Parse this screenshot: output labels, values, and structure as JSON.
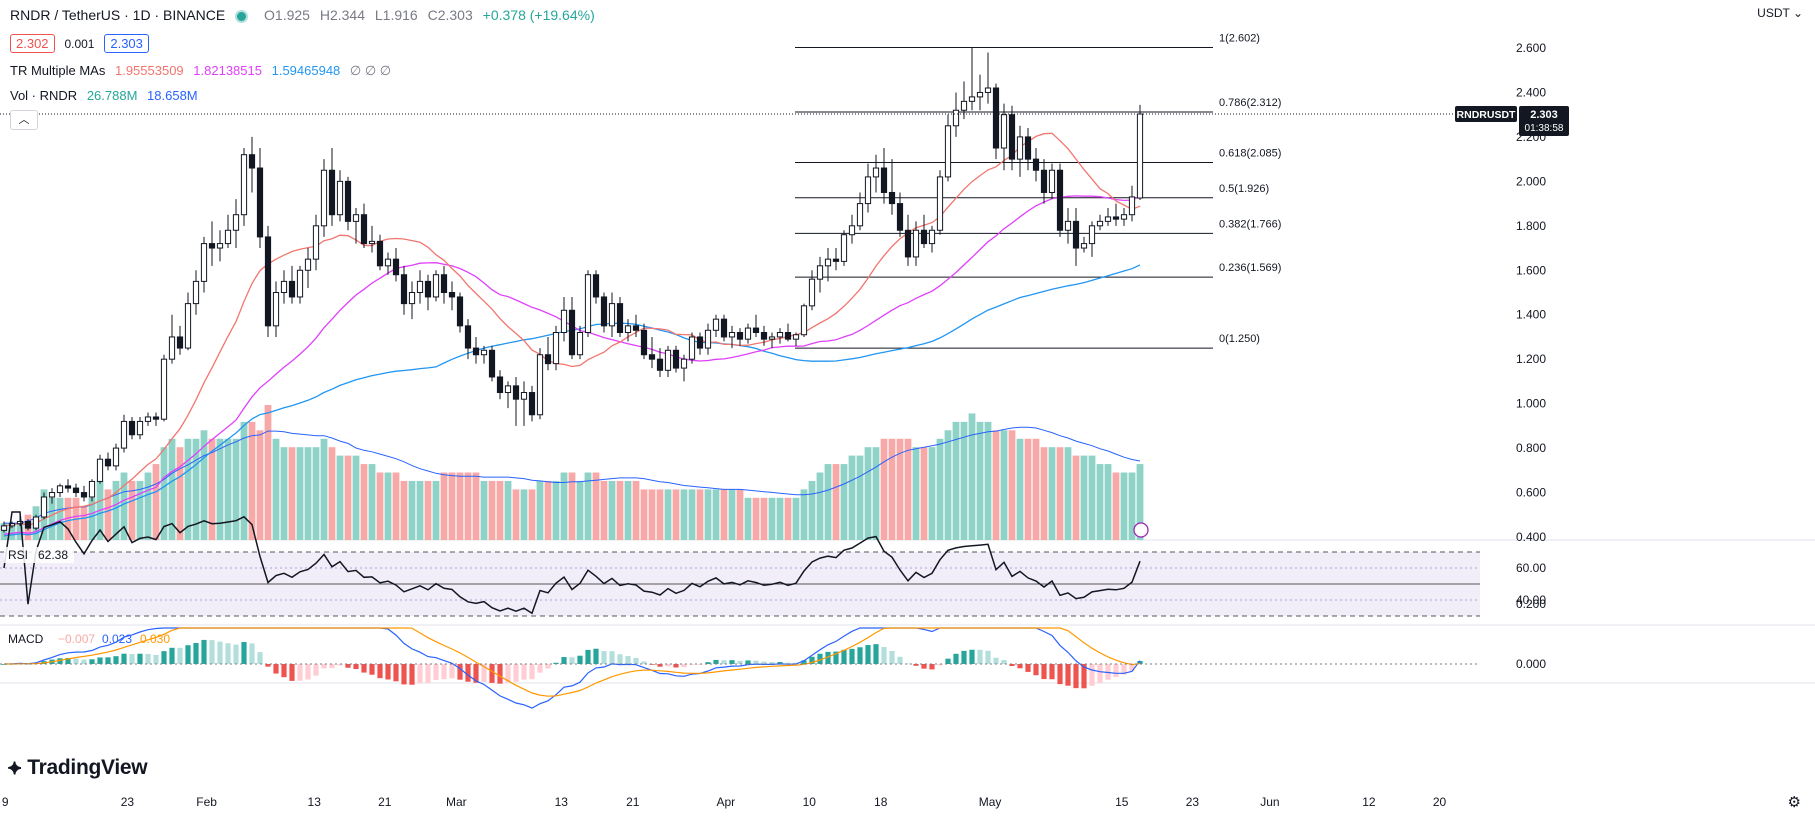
{
  "header": {
    "symbol": "RNDR / TetherUS · 1D · BINANCE",
    "ohlc": {
      "o": "O1.925",
      "h": "H2.344",
      "l": "L1.916",
      "c": "C2.303",
      "change": "+0.378 (+19.64%)"
    },
    "bid": "2.302",
    "spread": "0.001",
    "ask": "2.303",
    "mas": {
      "label": "TR Multiple MAs",
      "v1": "1.95553509",
      "v2": "1.82138515",
      "v3": "1.59465948",
      "rest": "∅  ∅  ∅"
    },
    "vol": {
      "label": "Vol · RNDR",
      "v1": "26.788M",
      "v2": "18.658M"
    },
    "currency": "USDT ⌄"
  },
  "price_tag": {
    "symbol": "RNDRUSDT",
    "price": "2.303",
    "countdown": "01:38:58"
  },
  "logo": "TradingView",
  "colors": {
    "up": "#26a69a",
    "down": "#ef5350",
    "ma20": "#f2766f",
    "ma50": "#e040fb",
    "ma100": "#2196f3",
    "volma": "#2962ff",
    "vol_up": "#8fd2c7",
    "vol_down": "#f7a9a7",
    "rsi": "#131722",
    "macd": "#2962ff",
    "signal": "#ff9800",
    "fib": "#131722"
  },
  "chart_data": [
    {
      "type": "candlestick",
      "title": "",
      "y_axis": {
        "min": 0.4,
        "max": 2.6,
        "ticks": [
          "2.600",
          "2.400",
          "2.200",
          "2.000",
          "1.800",
          "1.600",
          "1.400",
          "1.200",
          "1.000",
          "0.800",
          "0.600",
          "0.400"
        ]
      },
      "x_axis": {
        "ticks": [
          "9",
          "23",
          "Feb",
          "13",
          "21",
          "Mar",
          "13",
          "21",
          "Apr",
          "10",
          "18",
          "May",
          "15",
          "23",
          "Jun",
          "12",
          "20"
        ]
      },
      "fib": [
        {
          "level": "1(2.602)",
          "value": 2.602
        },
        {
          "level": "0.786(2.312)",
          "value": 2.312
        },
        {
          "level": "0.618(2.085)",
          "value": 2.085
        },
        {
          "level": "0.5(1.926)",
          "value": 1.926
        },
        {
          "level": "0.382(1.766)",
          "value": 1.766
        },
        {
          "level": "0.236(1.569)",
          "value": 1.569
        },
        {
          "level": "0(1.250)",
          "value": 1.25
        }
      ],
      "candles": [
        [
          0.43,
          0.47,
          0.42,
          0.45
        ],
        [
          0.45,
          0.47,
          0.44,
          0.46
        ],
        [
          0.46,
          0.5,
          0.45,
          0.47
        ],
        [
          0.47,
          0.48,
          0.43,
          0.44
        ],
        [
          0.44,
          0.5,
          0.43,
          0.49
        ],
        [
          0.49,
          0.6,
          0.48,
          0.58
        ],
        [
          0.58,
          0.62,
          0.55,
          0.6
        ],
        [
          0.6,
          0.64,
          0.58,
          0.63
        ],
        [
          0.63,
          0.66,
          0.6,
          0.62
        ],
        [
          0.62,
          0.64,
          0.58,
          0.6
        ],
        [
          0.6,
          0.63,
          0.56,
          0.58
        ],
        [
          0.58,
          0.66,
          0.56,
          0.65
        ],
        [
          0.65,
          0.77,
          0.64,
          0.75
        ],
        [
          0.75,
          0.78,
          0.7,
          0.72
        ],
        [
          0.72,
          0.82,
          0.7,
          0.8
        ],
        [
          0.8,
          0.95,
          0.78,
          0.92
        ],
        [
          0.92,
          0.94,
          0.84,
          0.86
        ],
        [
          0.86,
          0.94,
          0.84,
          0.92
        ],
        [
          0.92,
          0.96,
          0.9,
          0.94
        ],
        [
          0.94,
          0.96,
          0.9,
          0.93
        ],
        [
          0.93,
          1.22,
          0.92,
          1.2
        ],
        [
          1.2,
          1.4,
          1.18,
          1.3
        ],
        [
          1.3,
          1.35,
          1.22,
          1.25
        ],
        [
          1.25,
          1.5,
          1.24,
          1.45
        ],
        [
          1.45,
          1.6,
          1.4,
          1.55
        ],
        [
          1.55,
          1.75,
          1.5,
          1.72
        ],
        [
          1.72,
          1.82,
          1.62,
          1.7
        ],
        [
          1.7,
          1.78,
          1.64,
          1.72
        ],
        [
          1.72,
          1.85,
          1.7,
          1.78
        ],
        [
          1.78,
          1.92,
          1.7,
          1.85
        ],
        [
          1.85,
          2.15,
          1.8,
          2.12
        ],
        [
          2.12,
          2.2,
          1.95,
          2.06
        ],
        [
          2.06,
          2.15,
          1.7,
          1.75
        ],
        [
          1.75,
          1.8,
          1.3,
          1.35
        ],
        [
          1.35,
          1.55,
          1.3,
          1.5
        ],
        [
          1.5,
          1.6,
          1.45,
          1.55
        ],
        [
          1.55,
          1.62,
          1.45,
          1.48
        ],
        [
          1.48,
          1.62,
          1.45,
          1.6
        ],
        [
          1.6,
          1.7,
          1.52,
          1.65
        ],
        [
          1.65,
          1.85,
          1.6,
          1.8
        ],
        [
          1.8,
          2.1,
          1.75,
          2.05
        ],
        [
          2.05,
          2.15,
          1.8,
          1.85
        ],
        [
          1.85,
          2.05,
          1.82,
          2
        ],
        [
          2,
          2.02,
          1.78,
          1.82
        ],
        [
          1.82,
          1.88,
          1.72,
          1.85
        ],
        [
          1.85,
          1.9,
          1.7,
          1.72
        ],
        [
          1.72,
          1.8,
          1.68,
          1.73
        ],
        [
          1.73,
          1.76,
          1.6,
          1.62
        ],
        [
          1.62,
          1.68,
          1.58,
          1.65
        ],
        [
          1.65,
          1.7,
          1.55,
          1.58
        ],
        [
          1.58,
          1.62,
          1.4,
          1.45
        ],
        [
          1.45,
          1.55,
          1.38,
          1.5
        ],
        [
          1.5,
          1.6,
          1.45,
          1.55
        ],
        [
          1.55,
          1.58,
          1.42,
          1.48
        ],
        [
          1.48,
          1.6,
          1.46,
          1.58
        ],
        [
          1.58,
          1.62,
          1.45,
          1.5
        ],
        [
          1.5,
          1.55,
          1.42,
          1.48
        ],
        [
          1.48,
          1.5,
          1.32,
          1.35
        ],
        [
          1.35,
          1.38,
          1.2,
          1.25
        ],
        [
          1.25,
          1.3,
          1.18,
          1.22
        ],
        [
          1.22,
          1.26,
          1.18,
          1.24
        ],
        [
          1.24,
          1.26,
          1.1,
          1.12
        ],
        [
          1.12,
          1.15,
          1.02,
          1.05
        ],
        [
          1.05,
          1.1,
          0.98,
          1.08
        ],
        [
          1.08,
          1.12,
          0.9,
          1.02
        ],
        [
          1.02,
          1.1,
          0.9,
          1.05
        ],
        [
          1.05,
          1.08,
          0.92,
          0.95
        ],
        [
          0.95,
          1.25,
          0.93,
          1.22
        ],
        [
          1.22,
          1.3,
          1.15,
          1.18
        ],
        [
          1.18,
          1.35,
          1.15,
          1.32
        ],
        [
          1.32,
          1.48,
          1.28,
          1.42
        ],
        [
          1.42,
          1.48,
          1.2,
          1.22
        ],
        [
          1.22,
          1.35,
          1.2,
          1.32
        ],
        [
          1.32,
          1.6,
          1.3,
          1.58
        ],
        [
          1.58,
          1.6,
          1.45,
          1.48
        ],
        [
          1.48,
          1.5,
          1.32,
          1.35
        ],
        [
          1.35,
          1.5,
          1.3,
          1.45
        ],
        [
          1.45,
          1.48,
          1.3,
          1.32
        ],
        [
          1.32,
          1.38,
          1.28,
          1.35
        ],
        [
          1.35,
          1.4,
          1.3,
          1.33
        ],
        [
          1.33,
          1.36,
          1.2,
          1.22
        ],
        [
          1.22,
          1.3,
          1.16,
          1.2
        ],
        [
          1.2,
          1.25,
          1.12,
          1.15
        ],
        [
          1.15,
          1.26,
          1.12,
          1.24
        ],
        [
          1.24,
          1.26,
          1.14,
          1.16
        ],
        [
          1.16,
          1.22,
          1.1,
          1.2
        ],
        [
          1.2,
          1.32,
          1.18,
          1.3
        ],
        [
          1.3,
          1.32,
          1.22,
          1.25
        ],
        [
          1.25,
          1.36,
          1.22,
          1.33
        ],
        [
          1.33,
          1.4,
          1.3,
          1.38
        ],
        [
          1.38,
          1.4,
          1.28,
          1.3
        ],
        [
          1.3,
          1.35,
          1.25,
          1.32
        ],
        [
          1.32,
          1.34,
          1.26,
          1.29
        ],
        [
          1.29,
          1.36,
          1.27,
          1.34
        ],
        [
          1.34,
          1.4,
          1.3,
          1.32
        ],
        [
          1.32,
          1.35,
          1.26,
          1.29
        ],
        [
          1.29,
          1.32,
          1.25,
          1.3
        ],
        [
          1.3,
          1.34,
          1.27,
          1.32
        ],
        [
          1.32,
          1.36,
          1.28,
          1.29
        ],
        [
          1.29,
          1.32,
          1.26,
          1.31
        ],
        [
          1.31,
          1.45,
          1.3,
          1.44
        ],
        [
          1.44,
          1.6,
          1.42,
          1.56
        ],
        [
          1.56,
          1.66,
          1.5,
          1.62
        ],
        [
          1.62,
          1.7,
          1.55,
          1.65
        ],
        [
          1.65,
          1.7,
          1.6,
          1.64
        ],
        [
          1.64,
          1.78,
          1.62,
          1.76
        ],
        [
          1.76,
          1.85,
          1.72,
          1.8
        ],
        [
          1.8,
          1.95,
          1.78,
          1.9
        ],
        [
          1.9,
          2.08,
          1.86,
          2.02
        ],
        [
          2.02,
          2.12,
          1.95,
          2.06
        ],
        [
          2.06,
          2.15,
          1.9,
          1.95
        ],
        [
          1.95,
          2.1,
          1.85,
          1.9
        ],
        [
          1.9,
          1.95,
          1.75,
          1.78
        ],
        [
          1.78,
          1.85,
          1.62,
          1.66
        ],
        [
          1.66,
          1.82,
          1.62,
          1.78
        ],
        [
          1.78,
          1.85,
          1.7,
          1.72
        ],
        [
          1.72,
          1.8,
          1.68,
          1.78
        ],
        [
          1.78,
          2.05,
          1.76,
          2.02
        ],
        [
          2.02,
          2.3,
          2,
          2.25
        ],
        [
          2.25,
          2.4,
          2.2,
          2.32
        ],
        [
          2.32,
          2.45,
          2.28,
          2.36
        ],
        [
          2.36,
          2.6,
          2.32,
          2.38
        ],
        [
          2.38,
          2.48,
          2.32,
          2.4
        ],
        [
          2.4,
          2.58,
          2.35,
          2.42
        ],
        [
          2.42,
          2.44,
          2.1,
          2.15
        ],
        [
          2.15,
          2.35,
          2.05,
          2.3
        ],
        [
          2.3,
          2.34,
          2.05,
          2.1
        ],
        [
          2.1,
          2.25,
          2.02,
          2.2
        ],
        [
          2.2,
          2.24,
          2.05,
          2.1
        ],
        [
          2.1,
          2.15,
          2,
          2.05
        ],
        [
          2.05,
          2.1,
          1.9,
          1.95
        ],
        [
          1.95,
          2.08,
          1.92,
          2.05
        ],
        [
          2.05,
          2.08,
          1.75,
          1.78
        ],
        [
          1.78,
          1.88,
          1.72,
          1.82
        ],
        [
          1.82,
          1.88,
          1.62,
          1.7
        ],
        [
          1.7,
          1.75,
          1.68,
          1.72
        ],
        [
          1.72,
          1.82,
          1.66,
          1.8
        ],
        [
          1.8,
          1.85,
          1.78,
          1.82
        ],
        [
          1.82,
          1.88,
          1.8,
          1.84
        ],
        [
          1.84,
          1.9,
          1.8,
          1.83
        ],
        [
          1.83,
          1.88,
          1.8,
          1.85
        ],
        [
          1.85,
          1.98,
          1.82,
          1.93
        ],
        [
          1.925,
          2.344,
          1.916,
          2.303
        ]
      ],
      "ma20": [
        [
          0,
          0.46
        ],
        [
          40,
          1.06
        ],
        [
          60,
          1.32
        ],
        [
          80,
          1.48
        ],
        [
          100,
          1.53
        ],
        [
          150,
          1.38
        ],
        [
          200,
          1.3
        ],
        [
          250,
          1.3
        ],
        [
          300,
          1.25
        ],
        [
          330,
          1.22
        ],
        [
          380,
          1.22
        ],
        [
          430,
          1.36
        ],
        [
          470,
          1.28
        ],
        [
          510,
          1.3
        ],
        [
          550,
          1.3
        ],
        [
          590,
          1.32
        ],
        [
          620,
          1.33
        ],
        [
          700,
          1.3
        ],
        [
          760,
          1.3
        ],
        [
          800,
          1.28
        ],
        [
          840,
          1.26
        ],
        [
          880,
          1.27
        ],
        [
          920,
          1.28
        ],
        [
          960,
          1.32
        ],
        [
          1000,
          1.34
        ],
        [
          1050,
          1.34
        ],
        [
          1100,
          1.33
        ],
        [
          1150,
          1.34
        ],
        [
          1200,
          1.36
        ],
        [
          1250,
          1.38
        ],
        [
          1300,
          1.4
        ],
        [
          1340,
          1.43
        ]
      ],
      "ma50": [
        [
          0,
          0.44
        ],
        [
          300,
          0.96
        ],
        [
          500,
          1.08
        ],
        [
          1000,
          1.1
        ],
        [
          1200,
          1.12
        ],
        [
          1340,
          1.24
        ]
      ],
      "ma100": [
        [
          0,
          0.4
        ],
        [
          500,
          0.7
        ],
        [
          700,
          0.86
        ],
        [
          1000,
          1.0
        ],
        [
          1200,
          1.13
        ],
        [
          1340,
          1.26
        ]
      ]
    },
    {
      "type": "bar",
      "title": "Vol · RNDR",
      "note": "relative heights",
      "values": [
        2,
        2,
        2,
        3,
        4,
        6,
        5,
        5,
        5,
        5,
        4,
        5,
        7,
        6,
        7,
        8,
        7,
        7,
        8,
        9,
        11,
        12,
        11,
        12,
        12,
        13,
        12,
        12,
        12,
        12,
        14,
        14,
        13,
        16,
        12,
        11,
        11,
        11,
        11,
        11,
        12,
        11,
        10,
        10,
        10,
        9,
        9,
        8,
        8,
        8,
        7,
        7,
        7,
        7,
        7,
        8,
        8,
        8,
        8,
        8,
        7,
        7,
        7,
        7,
        6,
        6,
        6,
        7,
        7,
        7,
        8,
        8,
        7,
        8,
        8,
        7,
        7,
        7,
        7,
        7,
        6,
        6,
        6,
        6,
        6,
        6,
        6,
        6,
        6,
        6,
        6,
        6,
        6,
        5,
        5,
        5,
        5,
        5,
        5,
        5,
        6,
        7,
        8,
        9,
        9,
        9,
        10,
        10,
        11,
        11,
        12,
        12,
        12,
        12,
        11,
        11,
        11,
        12,
        13,
        14,
        14,
        15,
        14,
        14,
        13,
        13,
        13,
        12,
        12,
        12,
        11,
        11,
        11,
        11,
        10,
        10,
        10,
        9,
        9,
        8,
        8,
        8,
        9
      ]
    },
    {
      "type": "line",
      "title": "RSI",
      "value": "62.38",
      "y_axis": {
        "ticks": [
          "60.00",
          "40.00"
        ],
        "bands": [
          70,
          30
        ]
      }
    },
    {
      "type": "line",
      "title": "MACD",
      "values_label": {
        "hist": "−0.007",
        "macd": "0.023",
        "signal": "0.030"
      },
      "y_axis": {
        "ticks": [
          "0.200",
          "0.000"
        ]
      }
    }
  ]
}
